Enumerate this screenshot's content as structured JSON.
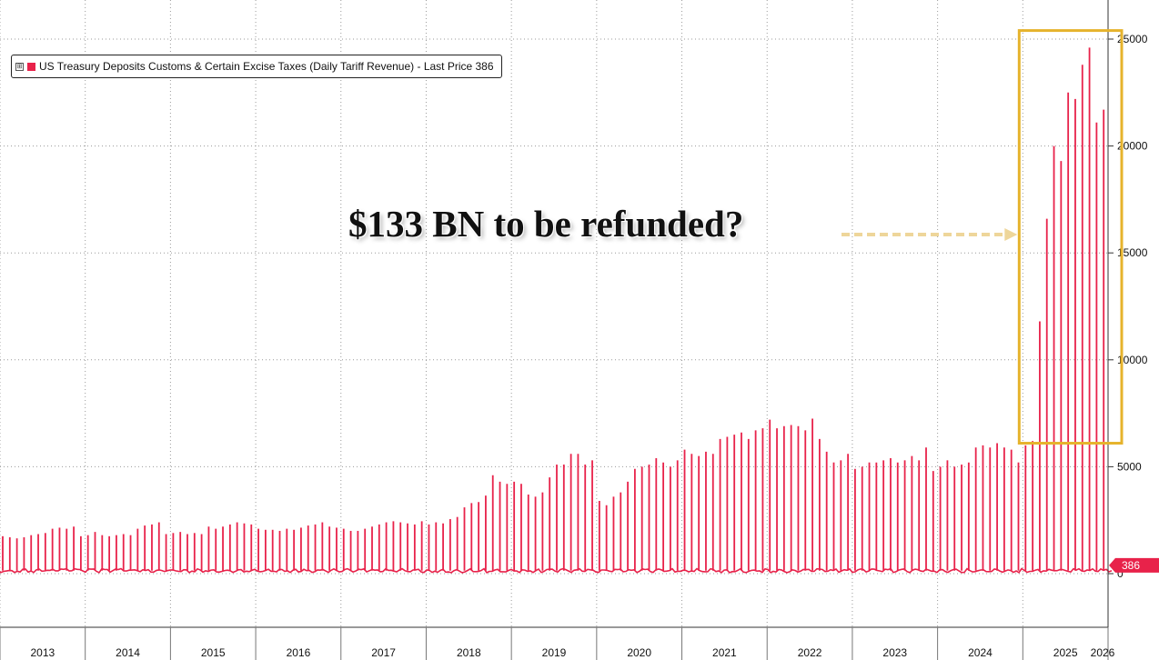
{
  "chart_data": {
    "type": "bar",
    "series": [
      {
        "name": "US Treasury Deposits Customs & Certain Excise Taxes (Daily Tariff Revenue) - Last Price 386",
        "x": [
          "2013-01",
          "2013-02",
          "2013-03",
          "2013-04",
          "2013-05",
          "2013-06",
          "2013-07",
          "2013-08",
          "2013-09",
          "2013-10",
          "2013-11",
          "2013-12",
          "2014-01",
          "2014-02",
          "2014-03",
          "2014-04",
          "2014-05",
          "2014-06",
          "2014-07",
          "2014-08",
          "2014-09",
          "2014-10",
          "2014-11",
          "2014-12",
          "2015-01",
          "2015-02",
          "2015-03",
          "2015-04",
          "2015-05",
          "2015-06",
          "2015-07",
          "2015-08",
          "2015-09",
          "2015-10",
          "2015-11",
          "2015-12",
          "2016-01",
          "2016-02",
          "2016-03",
          "2016-04",
          "2016-05",
          "2016-06",
          "2016-07",
          "2016-08",
          "2016-09",
          "2016-10",
          "2016-11",
          "2016-12",
          "2017-01",
          "2017-02",
          "2017-03",
          "2017-04",
          "2017-05",
          "2017-06",
          "2017-07",
          "2017-08",
          "2017-09",
          "2017-10",
          "2017-11",
          "2017-12",
          "2018-01",
          "2018-02",
          "2018-03",
          "2018-04",
          "2018-05",
          "2018-06",
          "2018-07",
          "2018-08",
          "2018-09",
          "2018-10",
          "2018-11",
          "2018-12",
          "2019-01",
          "2019-02",
          "2019-03",
          "2019-04",
          "2019-05",
          "2019-06",
          "2019-07",
          "2019-08",
          "2019-09",
          "2019-10",
          "2019-11",
          "2019-12",
          "2020-01",
          "2020-02",
          "2020-03",
          "2020-04",
          "2020-05",
          "2020-06",
          "2020-07",
          "2020-08",
          "2020-09",
          "2020-10",
          "2020-11",
          "2020-12",
          "2021-01",
          "2021-02",
          "2021-03",
          "2021-04",
          "2021-05",
          "2021-06",
          "2021-07",
          "2021-08",
          "2021-09",
          "2021-10",
          "2021-11",
          "2021-12",
          "2022-01",
          "2022-02",
          "2022-03",
          "2022-04",
          "2022-05",
          "2022-06",
          "2022-07",
          "2022-08",
          "2022-09",
          "2022-10",
          "2022-11",
          "2022-12",
          "2023-01",
          "2023-02",
          "2023-03",
          "2023-04",
          "2023-05",
          "2023-06",
          "2023-07",
          "2023-08",
          "2023-09",
          "2023-10",
          "2023-11",
          "2023-12",
          "2024-01",
          "2024-02",
          "2024-03",
          "2024-04",
          "2024-05",
          "2024-06",
          "2024-07",
          "2024-08",
          "2024-09",
          "2024-10",
          "2024-11",
          "2024-12",
          "2025-01",
          "2025-02",
          "2025-03",
          "2025-04",
          "2025-05",
          "2025-06",
          "2025-07",
          "2025-08",
          "2025-09",
          "2025-10",
          "2025-11",
          "2025-12"
        ],
        "values": [
          1750,
          1700,
          1650,
          1700,
          1800,
          1850,
          1900,
          2100,
          2150,
          2100,
          2200,
          1750,
          1800,
          1950,
          1800,
          1750,
          1800,
          1850,
          1800,
          2100,
          2250,
          2300,
          2400,
          1850,
          1900,
          1950,
          1850,
          1900,
          1850,
          2200,
          2100,
          2200,
          2300,
          2400,
          2350,
          2300,
          2100,
          2050,
          2050,
          2000,
          2100,
          2050,
          2150,
          2250,
          2300,
          2400,
          2200,
          2150,
          2100,
          2000,
          2000,
          2100,
          2200,
          2300,
          2400,
          2450,
          2400,
          2350,
          2300,
          2450,
          2300,
          2400,
          2350,
          2550,
          2650,
          3100,
          3300,
          3350,
          3650,
          4600,
          4300,
          4200,
          4300,
          4200,
          3700,
          3600,
          3800,
          4500,
          5100,
          5100,
          5600,
          5600,
          5100,
          5300,
          3400,
          3200,
          3600,
          3800,
          4300,
          4900,
          5000,
          5100,
          5400,
          5200,
          5000,
          5300,
          5800,
          5600,
          5500,
          5700,
          5600,
          6300,
          6400,
          6500,
          6600,
          6300,
          6700,
          6800,
          7200,
          6800,
          6900,
          6950,
          6900,
          6700,
          7250,
          6300,
          5700,
          5200,
          5300,
          5600,
          4900,
          5000,
          5200,
          5200,
          5300,
          5400,
          5200,
          5300,
          5500,
          5300,
          5900,
          4800,
          5000,
          5300,
          5000,
          5100,
          5200,
          5900,
          6000,
          5900,
          6100,
          5900,
          5800,
          5200,
          6000,
          6200,
          11800,
          16600,
          20000,
          19300,
          22500,
          22200,
          23800,
          24600,
          21100,
          21700
        ]
      }
    ],
    "title": "",
    "xlabel": "",
    "ylabel": "",
    "ylim": [
      -2500,
      26000
    ],
    "xlim": [
      "2013-01",
      "2026-02"
    ],
    "yticks": [
      0,
      5000,
      10000,
      15000,
      20000,
      25000
    ],
    "xtick_labels": [
      "2013",
      "2014",
      "2015",
      "2016",
      "2017",
      "2018",
      "2019",
      "2020",
      "2021",
      "2022",
      "2023",
      "2024",
      "2025",
      "2026"
    ],
    "last_price_label": "386",
    "last_price_value": 386,
    "baseline_level": 140,
    "grid": true,
    "y_axis_side": "right",
    "legend_position": "top-left",
    "color": "#e8224a",
    "annotation": {
      "text": "$133 BN to be refunded?",
      "highlight_box": {
        "x_start": "2025-01",
        "x_end": "2026-01",
        "y_start": 6100,
        "y_end": 25400
      },
      "box_color": "#e6b32c",
      "arrow_color": "#eed69a"
    }
  },
  "legend": {
    "expand_symbol": "⊞",
    "label": "US Treasury Deposits Customs & Certain Excise Taxes (Daily Tariff Revenue) - Last Price 386"
  },
  "annotation_text": "$133 BN to be refunded?"
}
